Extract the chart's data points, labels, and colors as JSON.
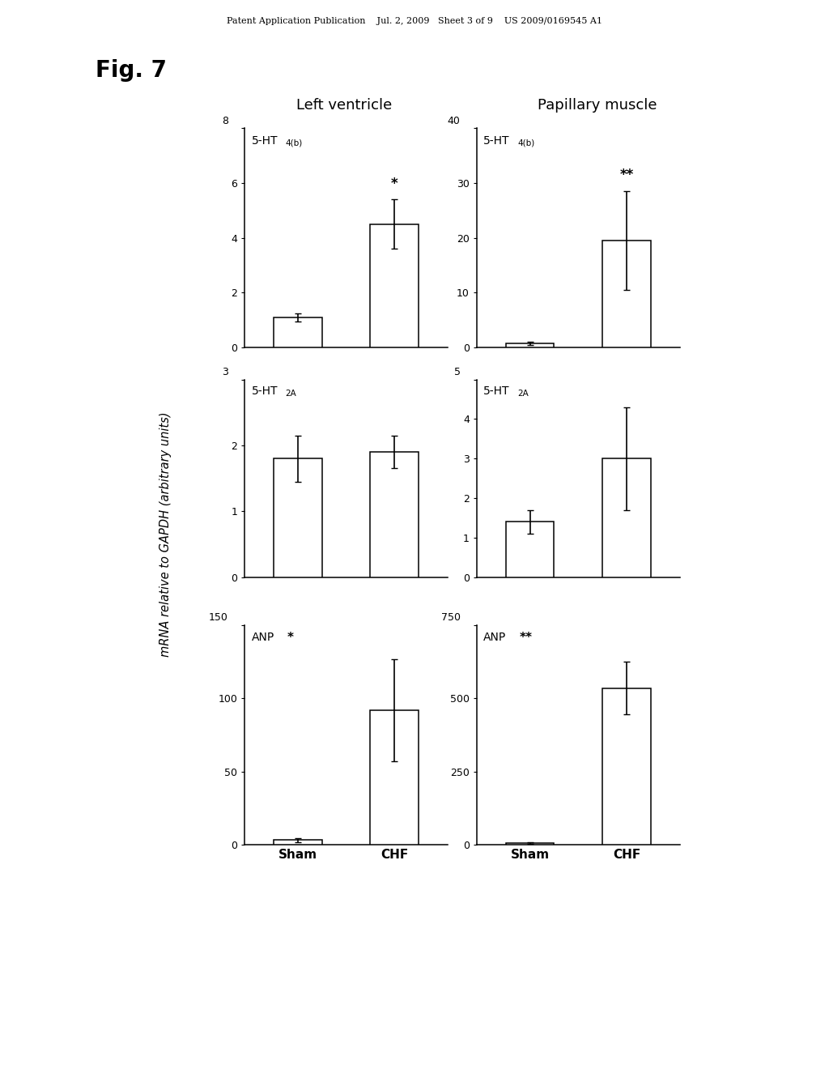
{
  "fig_label": "Fig. 7",
  "header_left": "Left ventricle",
  "header_right": "Papillary muscle",
  "ylabel": "mRNA relative to GAPDH (arbitrary units)",
  "patent_line1": "Patent Application Publication",
  "patent_line2": "Jul. 2, 2009",
  "patent_line3": "Sheet 3 of 9",
  "patent_line4": "US 2009/0169545 A1",
  "subplots_left": [
    {
      "title": "5-HT",
      "title_sub": "4(b)",
      "sig_near_CHF": "*",
      "ylim": [
        0,
        8
      ],
      "yticks": [
        0,
        2,
        4,
        6,
        8
      ],
      "sham_val": 1.1,
      "sham_err": 0.15,
      "chf_val": 4.5,
      "chf_err": 0.9
    },
    {
      "title": "5-HT",
      "title_sub": "2A",
      "sig_near_CHF": "",
      "ylim": [
        0,
        3
      ],
      "yticks": [
        0,
        1,
        2,
        3
      ],
      "sham_val": 1.8,
      "sham_err": 0.35,
      "chf_val": 1.9,
      "chf_err": 0.25
    },
    {
      "title": "ANP",
      "title_sub": "",
      "sig_title": "*",
      "sig_near_CHF": "",
      "ylim": [
        0,
        150
      ],
      "yticks": [
        0,
        50,
        100,
        150
      ],
      "sham_val": 3.0,
      "sham_err": 1.5,
      "chf_val": 92.0,
      "chf_err": 35.0
    }
  ],
  "subplots_right": [
    {
      "title": "5-HT",
      "title_sub": "4(b)",
      "sig_near_CHF": "**",
      "ylim": [
        0,
        40
      ],
      "yticks": [
        0,
        10,
        20,
        30,
        40
      ],
      "sham_val": 0.8,
      "sham_err": 0.3,
      "chf_val": 19.5,
      "chf_err": 9.0
    },
    {
      "title": "5-HT",
      "title_sub": "2A",
      "sig_near_CHF": "",
      "ylim": [
        0,
        5
      ],
      "yticks": [
        0,
        1,
        2,
        3,
        4,
        5
      ],
      "sham_val": 1.4,
      "sham_err": 0.3,
      "chf_val": 3.0,
      "chf_err": 1.3
    },
    {
      "title": "ANP",
      "title_sub": "",
      "sig_title": "**",
      "sig_near_CHF": "",
      "ylim": [
        0,
        750
      ],
      "yticks": [
        0,
        250,
        500,
        750
      ],
      "sham_val": 5.0,
      "sham_err": 3.0,
      "chf_val": 535.0,
      "chf_err": 90.0
    }
  ],
  "bar_color": "white",
  "bar_edgecolor": "black",
  "bar_width": 0.5,
  "errorbar_capsize": 3,
  "errorbar_lw": 1.2
}
